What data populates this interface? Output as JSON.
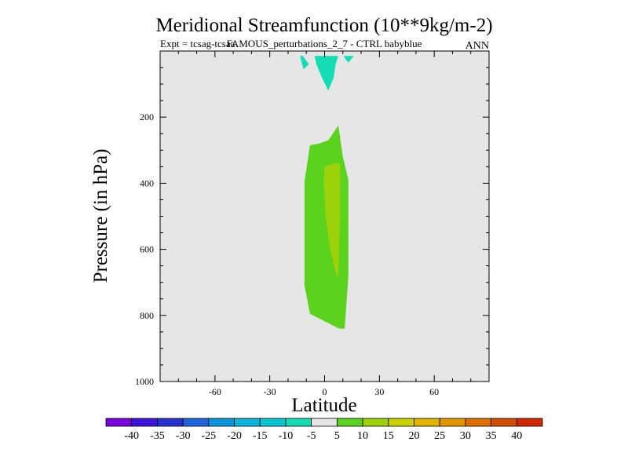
{
  "chart_data": {
    "type": "contour",
    "title": "Meridional Streamfunction (10**9kg/m-2)",
    "subtitle_left": "Expt = tcsag-tcsaa",
    "subtitle_center": "FAMOUS_perturbations_2_7 - CTRL babyblue",
    "subtitle_right": "ANN",
    "xlabel": "Latitude",
    "ylabel": "Pressure (in hPa)",
    "xlim": [
      -90,
      90
    ],
    "ylim": [
      1000,
      0
    ],
    "x_ticks": [
      -60,
      -30,
      0,
      30,
      60
    ],
    "y_ticks": [
      200,
      400,
      600,
      800,
      1000
    ],
    "x_minor_step": 10,
    "y_minor_step": 50,
    "background_color": "#e6e6e6",
    "contour_levels": [
      -40,
      -35,
      -30,
      -25,
      -20,
      -15,
      -10,
      -5,
      5,
      10,
      15,
      20,
      25,
      30,
      35,
      40
    ],
    "colorbar_colors": [
      "#7a00dc",
      "#3c14dc",
      "#2832d2",
      "#1e64dc",
      "#0a96dc",
      "#0ab4dc",
      "#0ac8d2",
      "#14dcb4",
      "#e6e6e6",
      "#5ad21e",
      "#9bd20a",
      "#c8d200",
      "#e1b400",
      "#e19600",
      "#e16e00",
      "#d25000",
      "#d22800"
    ],
    "filled_regions": [
      {
        "name": "negative-cell-left",
        "level_range": "-10 to -5",
        "color": "#14dcb4",
        "polygon": [
          [
            -13.5,
            15
          ],
          [
            -11.5,
            55
          ],
          [
            -8.5,
            40
          ],
          [
            -12,
            15
          ]
        ]
      },
      {
        "name": "negative-cell-center",
        "level_range": "-10 to -5",
        "color": "#14dcb4",
        "polygon": [
          [
            -5.5,
            15
          ],
          [
            -4.5,
            40
          ],
          [
            -1.5,
            80
          ],
          [
            2,
            120
          ],
          [
            5,
            80
          ],
          [
            6,
            40
          ],
          [
            7.5,
            15
          ]
        ]
      },
      {
        "name": "negative-cell-right",
        "level_range": "-10 to -5",
        "color": "#14dcb4",
        "polygon": [
          [
            10.5,
            15
          ],
          [
            11.5,
            25
          ],
          [
            13,
            35
          ],
          [
            16,
            15
          ]
        ]
      },
      {
        "name": "positive-cell-outer",
        "level_range": "5 to 10",
        "color": "#5ad21e",
        "polygon": [
          [
            7.5,
            225
          ],
          [
            10,
            320
          ],
          [
            13,
            390
          ],
          [
            13,
            680
          ],
          [
            11,
            840
          ],
          [
            8,
            840
          ],
          [
            -8,
            795
          ],
          [
            -11,
            710
          ],
          [
            -11,
            395
          ],
          [
            -8,
            285
          ],
          [
            -3,
            280
          ],
          [
            2,
            270
          ]
        ]
      },
      {
        "name": "positive-cell-inner",
        "level_range": "10 to 15",
        "color": "#9bd20a",
        "polygon": [
          [
            8.5,
            340
          ],
          [
            8.5,
            500
          ],
          [
            7.5,
            680
          ],
          [
            6.5,
            680
          ],
          [
            3,
            600
          ],
          [
            0.5,
            500
          ],
          [
            -0.5,
            400
          ],
          [
            0,
            350
          ],
          [
            5,
            340
          ]
        ]
      }
    ]
  }
}
